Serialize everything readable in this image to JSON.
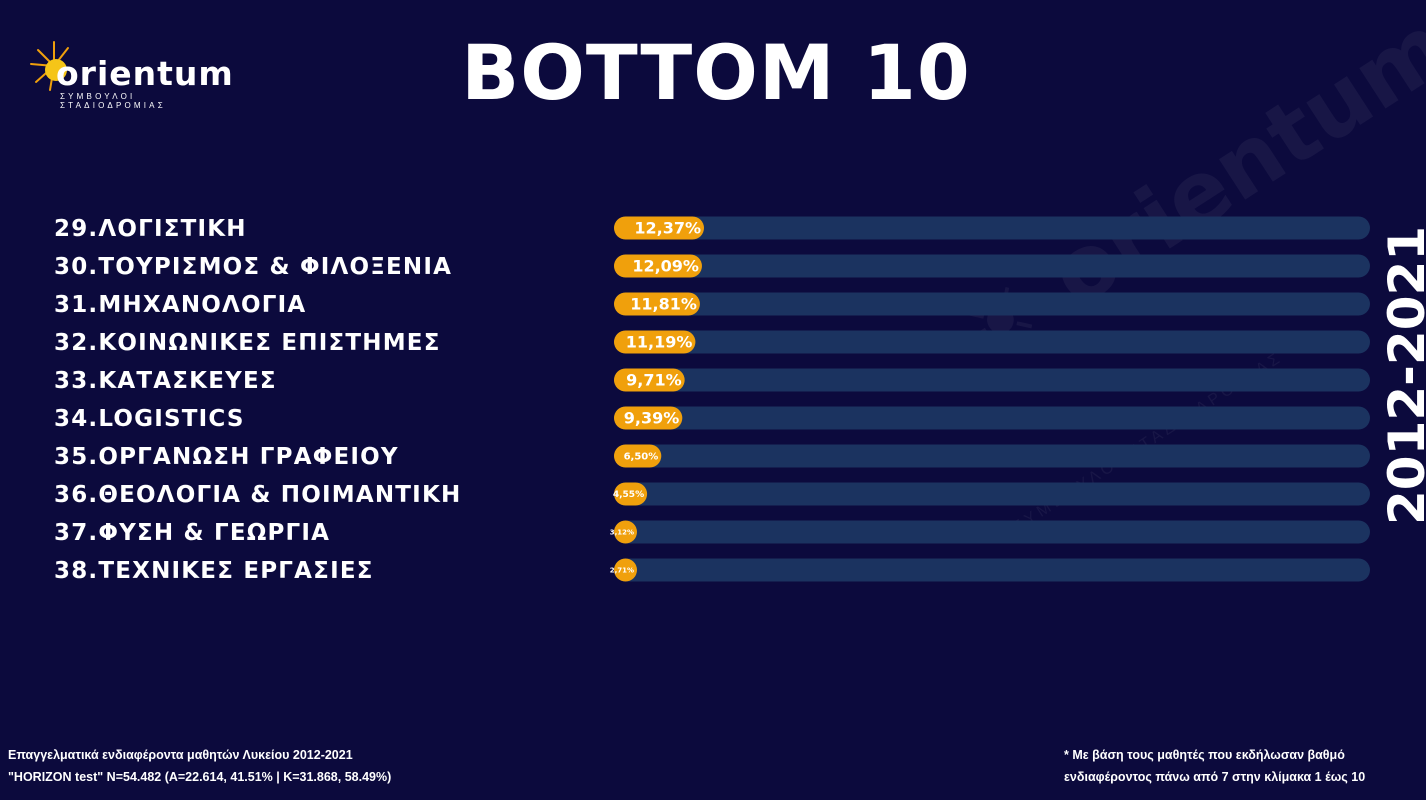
{
  "logo": {
    "text": "orientum",
    "subtitle": "ΣΥΜΒΟΥΛΟΙ ΣΤΑΔΙΟΔΡΟΜΙΑΣ"
  },
  "year_label": "2012-2021",
  "chart_data": {
    "type": "bar",
    "orientation": "horizontal",
    "title": "BOTTOM 10",
    "categories": [
      "29.ΛΟΓΙΣΤΙΚΗ",
      "30.ΤΟΥΡΙΣΜΟΣ & ΦΙΛΟΞΕΝΙΑ",
      "31.ΜΗΧΑΝΟΛΟΓΙΑ",
      "32.ΚΟΙΝΩΝΙΚΕΣ ΕΠΙΣΤΗΜΕΣ",
      "33.ΚΑΤΑΣΚΕΥΕΣ",
      "34.LOGISTICS",
      "35.ΟΡΓΑΝΩΣΗ ΓΡΑΦΕΙΟΥ",
      "36.ΘΕΟΛΟΓΙΑ & ΠΟΙΜΑΝΤΙΚΗ",
      "37.ΦΥΣΗ & ΓΕΩΡΓΙΑ",
      "38.ΤΕΧΝΙΚΕΣ ΕΡΓΑΣΙΕΣ"
    ],
    "values": [
      12.37,
      12.09,
      11.81,
      11.19,
      9.71,
      9.39,
      6.5,
      4.55,
      3.12,
      2.71
    ],
    "value_labels": [
      "12,37%",
      "12,09%",
      "11,81%",
      "11,19%",
      "9,71%",
      "9,39%",
      "6,50%",
      "4,55%",
      "3,12%",
      "2,71%"
    ],
    "bar_color": "#f0a00c",
    "track_color": "#1b3360",
    "xlim": [
      0,
      100
    ],
    "grid": false,
    "legend": "none"
  },
  "footer": {
    "left_line1": "Επαγγελματικά ενδιαφέροντα μαθητών Λυκείου 2012-2021",
    "left_line2": "\"HORIZON test\" N=54.482 (A=22.614, 41.51% | K=31.868, 58.49%)",
    "right_line1": "* Με βάση τους μαθητές που εκδήλωσαν βαθμό",
    "right_line2": "ενδιαφέροντος πάνω από 7 στην κλίμακα 1 έως 10"
  }
}
